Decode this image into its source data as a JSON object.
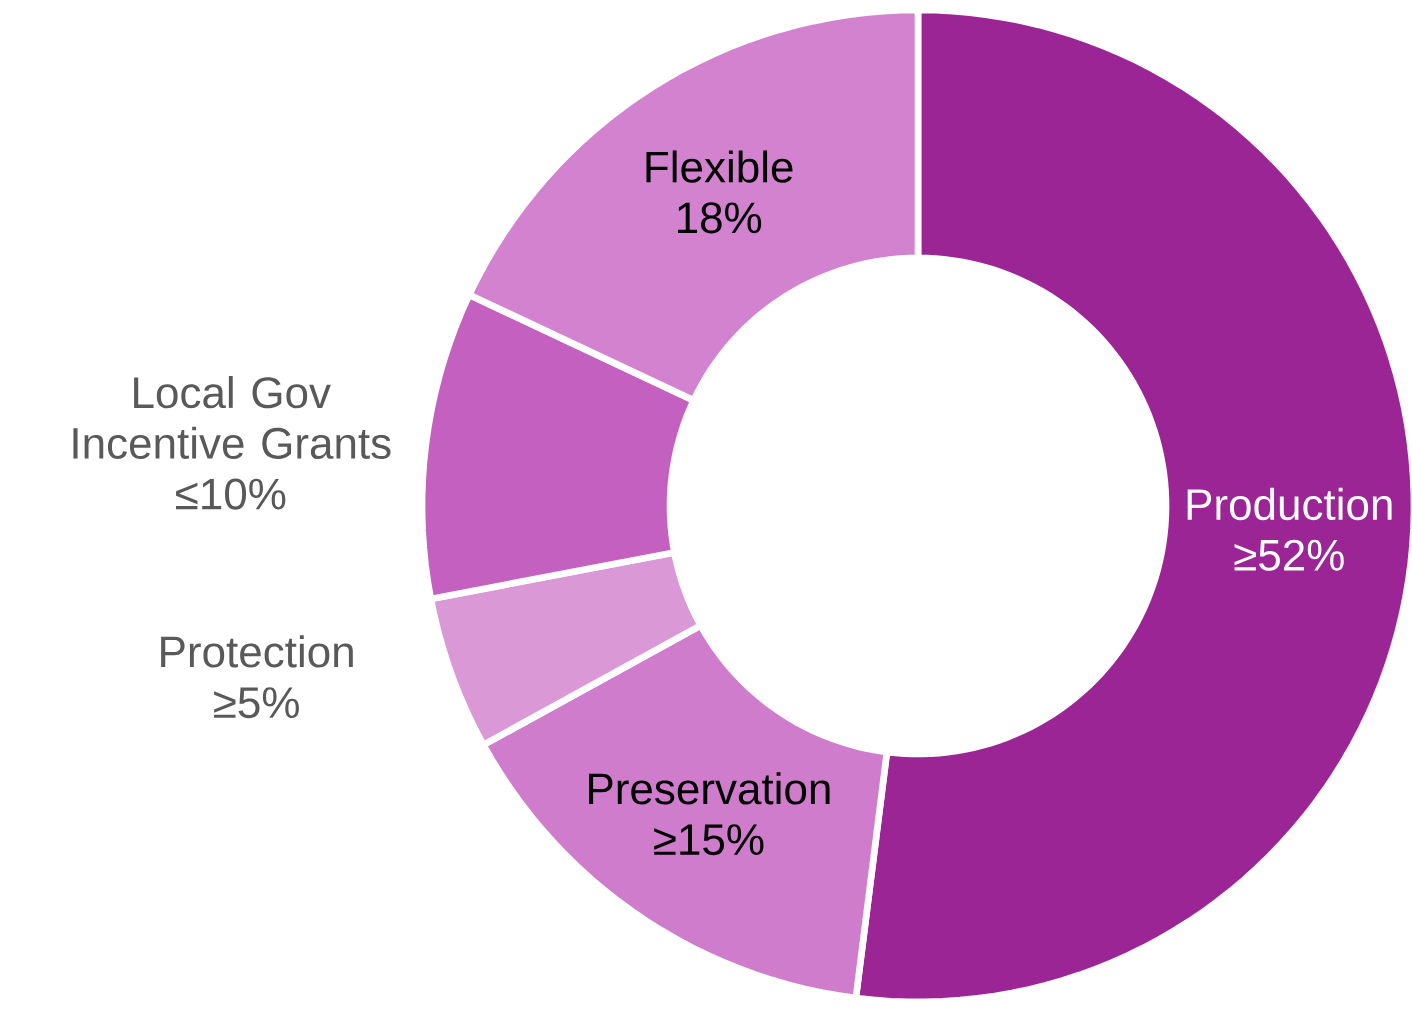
{
  "chart_data": {
    "type": "donut",
    "categories": [
      "Production",
      "Preservation",
      "Protection",
      "Local Gov Incentive Grants",
      "Flexible"
    ],
    "values": [
      52,
      15,
      5,
      10,
      18
    ],
    "value_labels": [
      "≥52%",
      "≥15%",
      "≥5%",
      "≤10%",
      "18%"
    ],
    "colors": [
      "#9c2596",
      "#d07ccc",
      "#da98d6",
      "#c460bf",
      "#d382cf"
    ]
  }
}
